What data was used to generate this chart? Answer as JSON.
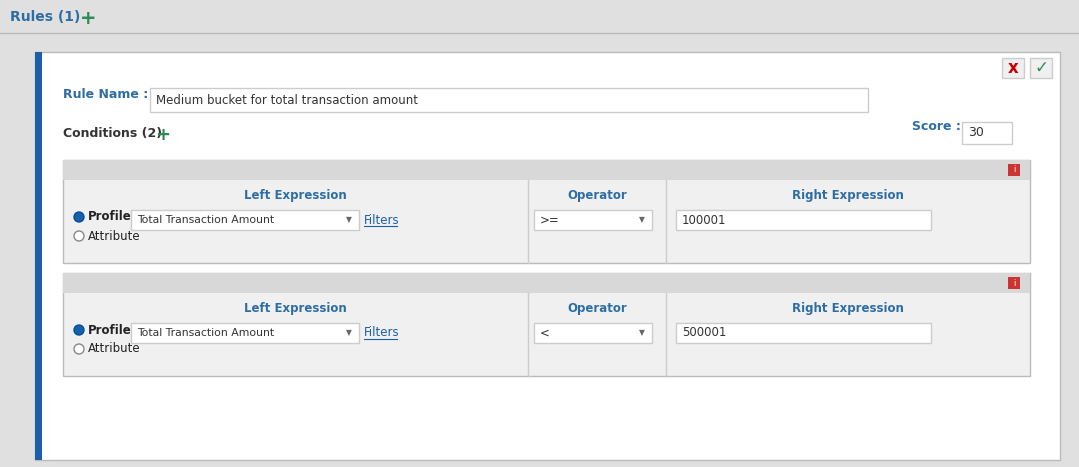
{
  "title": "Rules (1)",
  "title_color": "#2e6da4",
  "plus_color": "#2e8b57",
  "bg_color": "#e0e0e0",
  "panel_bg": "#ffffff",
  "rule_name_label": "Rule Name :",
  "rule_name_value": "Medium bucket for total transaction amount",
  "rule_name_label_color": "#2e6da4",
  "score_label": "Score :",
  "score_label_color": "#2e6da4",
  "score_value": "30",
  "conditions_label": "Conditions (2)",
  "conditions_color": "#333333",
  "left_expr_label": "Left Expression",
  "operator_label": "Operator",
  "right_expr_label": "Right Expression",
  "header_color": "#2e6da4",
  "condition1": {
    "profile_text": "Profile",
    "attribute_text": "Attribute",
    "left_value": "Total Transaction Amount",
    "operator_value": ">=",
    "right_value": "100001",
    "filters_text": "Filters"
  },
  "condition2": {
    "profile_text": "Profile",
    "attribute_text": "Attribute",
    "left_value": "Total Transaction Amount",
    "operator_value": "<",
    "right_value": "500001",
    "filters_text": "Filters"
  },
  "delete_color": "#cc0000",
  "check_color": "#2e8b57",
  "cross_color": "#cc0000",
  "left_border_color": "#1a5fa8",
  "separator_color": "#bbbbbb",
  "input_bg": "#ffffff",
  "input_border": "#cccccc",
  "condition_box_bg": "#f0f0f0",
  "condition_header_bg": "#d8d8d8",
  "radio_color": "#1a5fa8",
  "figwidth": 10.79,
  "figheight": 4.67
}
